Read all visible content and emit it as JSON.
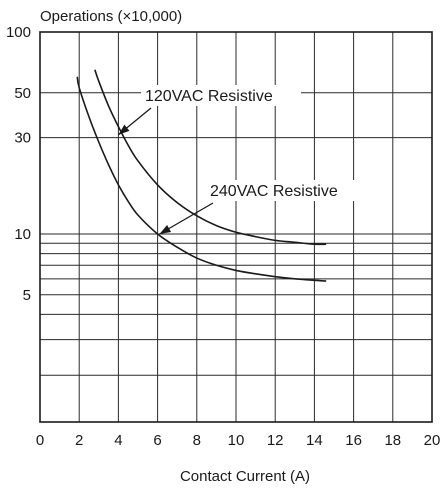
{
  "chart_data": {
    "type": "line",
    "title": "Operations (×10,000)",
    "xlabel": "Contact Current (A)",
    "ylabel": "",
    "xlim": [
      0,
      20
    ],
    "ylim": [
      1,
      100
    ],
    "y_scale": "log",
    "grid": true,
    "x_ticks": [
      "0",
      "2",
      "4",
      "6",
      "8",
      "10",
      "12",
      "14",
      "16",
      "18",
      "20"
    ],
    "y_ticks": [
      {
        "value": 100,
        "label": "100"
      },
      {
        "value": 50,
        "label": "50"
      },
      {
        "value": 30,
        "label": "30"
      },
      {
        "value": 10,
        "label": "10"
      },
      {
        "value": 5,
        "label": "5"
      }
    ],
    "series": [
      {
        "name": "120VAC Resistive",
        "x": [
          2.8,
          3.0,
          3.5,
          4.0,
          4.5,
          5.0,
          6.0,
          7.0,
          8.0,
          9.0,
          10.0,
          11.0,
          12.0,
          13.0,
          14.0,
          14.6
        ],
        "y": [
          65,
          57,
          43,
          34,
          27.5,
          23,
          17.5,
          14.3,
          12.3,
          11,
          10.2,
          9.7,
          9.3,
          9.1,
          8.9,
          8.9
        ]
      },
      {
        "name": "240VAC Resistive",
        "x": [
          1.9,
          2.0,
          2.5,
          3.0,
          3.5,
          4.0,
          4.5,
          5.0,
          6.0,
          7.0,
          8.0,
          9.0,
          10.0,
          11.0,
          12.0,
          13.0,
          14.0,
          14.6
        ],
        "y": [
          60,
          53,
          38,
          28.5,
          22,
          17.5,
          14.5,
          12.4,
          10,
          8.6,
          7.6,
          7,
          6.6,
          6.35,
          6.15,
          6.0,
          5.9,
          5.85
        ]
      }
    ],
    "annotations": [
      {
        "text": "120VAC Resistive",
        "points_to": {
          "x": 4.0,
          "y": 31
        }
      },
      {
        "text": "240VAC Resistive",
        "points_to": {
          "x": 6.1,
          "y": 10
        }
      }
    ]
  }
}
